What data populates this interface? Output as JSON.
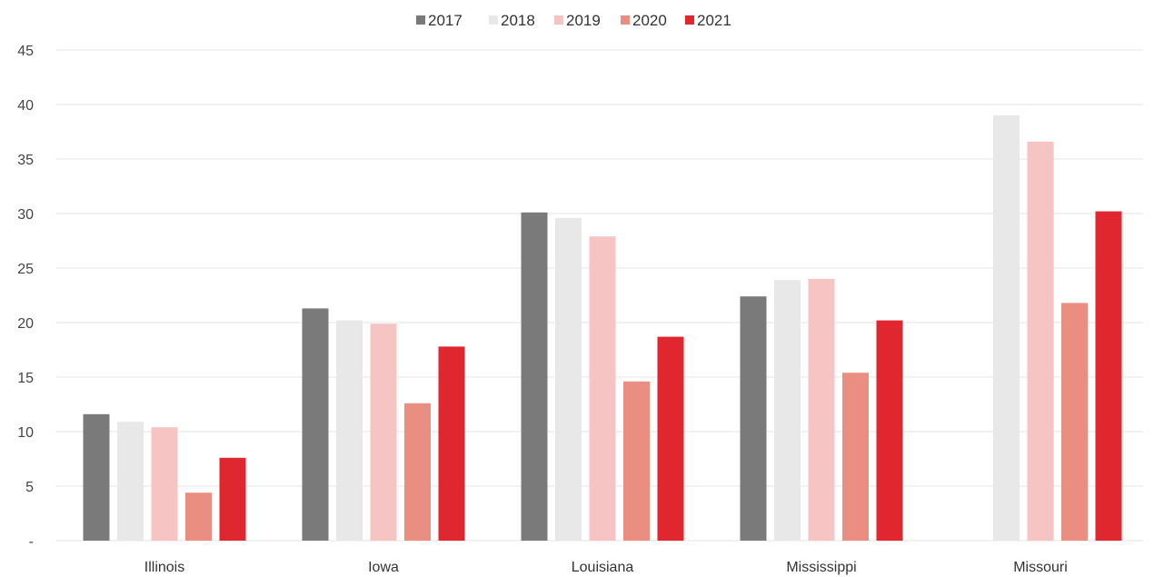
{
  "chart_data": {
    "type": "bar",
    "categories": [
      "Illinois",
      "Iowa",
      "Louisiana",
      "Mississippi",
      "Missouri"
    ],
    "series": [
      {
        "name": "2017",
        "color": "#7a7a7a",
        "values": [
          11.6,
          21.3,
          30.1,
          22.4,
          null
        ]
      },
      {
        "name": "2018",
        "color": "#e8e8e8",
        "values": [
          10.9,
          20.2,
          29.6,
          23.9,
          39.0
        ]
      },
      {
        "name": "2019",
        "color": "#f6c5c3",
        "values": [
          10.4,
          19.9,
          27.9,
          24.0,
          36.6
        ]
      },
      {
        "name": "2020",
        "color": "#eb8e82",
        "values": [
          4.4,
          12.6,
          14.6,
          15.4,
          21.8
        ]
      },
      {
        "name": "2021",
        "color": "#e0262e",
        "values": [
          7.6,
          17.8,
          18.7,
          20.2,
          30.2
        ]
      }
    ],
    "y_ticks": [
      {
        "value": 0,
        "label": "-"
      },
      {
        "value": 5,
        "label": "5"
      },
      {
        "value": 10,
        "label": "10"
      },
      {
        "value": 15,
        "label": "15"
      },
      {
        "value": 20,
        "label": "20"
      },
      {
        "value": 25,
        "label": "25"
      },
      {
        "value": 30,
        "label": "30"
      },
      {
        "value": 35,
        "label": "35"
      },
      {
        "value": 40,
        "label": "40"
      },
      {
        "value": 45,
        "label": "45"
      }
    ],
    "ylim": [
      0,
      45
    ],
    "grid": true,
    "legend_position": "top-center",
    "title": "",
    "xlabel": "",
    "ylabel": ""
  }
}
